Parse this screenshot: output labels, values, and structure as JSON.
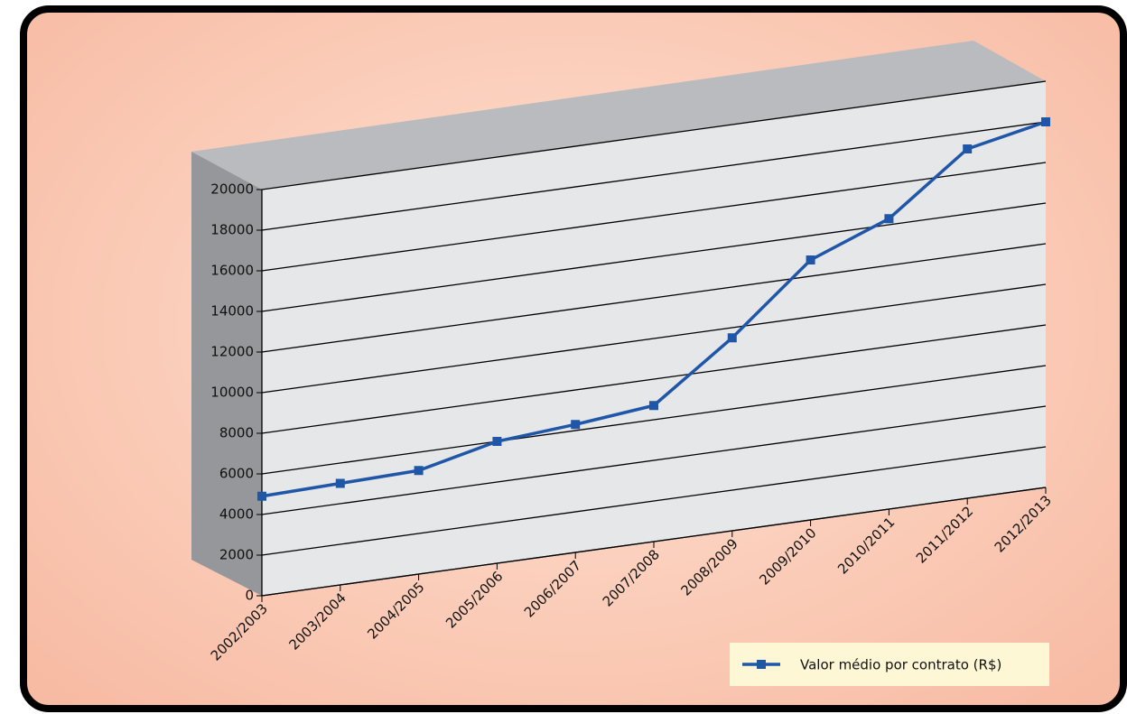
{
  "chart_data": {
    "type": "line",
    "categories": [
      "2002/2003",
      "2003/2004",
      "2004/2005",
      "2005/2006",
      "2006/2007",
      "2007/2008",
      "2008/2009",
      "2009/2010",
      "2010/2011",
      "2011/2012",
      "2012/2013"
    ],
    "series": [
      {
        "name": "Valor médio por contrato (R$)",
        "color": "#1f56a8",
        "values": [
          4900,
          5000,
          5100,
          6000,
          6300,
          6700,
          9500,
          12800,
          14300,
          17200,
          18000
        ]
      }
    ],
    "ylim": [
      0,
      20000
    ],
    "yticks": [
      0,
      2000,
      4000,
      6000,
      8000,
      10000,
      12000,
      14000,
      16000,
      18000,
      20000
    ],
    "grid": true
  }
}
